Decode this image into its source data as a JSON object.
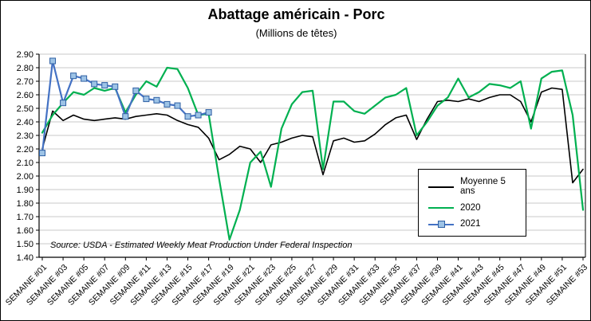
{
  "title": "Abattage américain - Porc",
  "subtitle": "(Millions de têtes)",
  "source_note": "Source: USDA - Estimated Weekly Meat Production Under Federal Inspection",
  "colors": {
    "moyenne_5_ans": "#000000",
    "s2020": "#00B050",
    "s2021": "#4472C4",
    "s2021_marker_fill": "#9DC3E6",
    "s2021_marker_stroke": "#2E5FA3",
    "grid": "#C9C9C9",
    "axis": "#000000"
  },
  "chart_data": {
    "type": "line",
    "title": "Abattage américain - Porc",
    "subtitle": "(Millions de têtes)",
    "ylabel": "",
    "xlabel": "",
    "ylim": [
      1.4,
      2.9
    ],
    "y_tick_step": 0.1,
    "grid": "horizontal",
    "legend_position": "inside-right",
    "weeks": 53,
    "y_tick_labels": [
      "2.90",
      "2.80",
      "2.70",
      "2.60",
      "2.50",
      "2.40",
      "2.30",
      "2.20",
      "2.10",
      "2.00",
      "1.90",
      "1.80",
      "1.70",
      "1.60",
      "1.50",
      "1.40"
    ],
    "x_tick_labels": [
      "SEMAINE #01",
      "SEMAINE #03",
      "SEMAINE #05",
      "SEMAINE #07",
      "SEMAINE #09",
      "SEMAINE #11",
      "SEMAINE #13",
      "SEMAINE #15",
      "SEMAINE #17",
      "SEMAINE #19",
      "SEMAINE #21",
      "SEMAINE #23",
      "SEMAINE #25",
      "SEMAINE #27",
      "SEMAINE #29",
      "SEMAINE #31",
      "SEMAINE #33",
      "SEMAINE #35",
      "SEMAINE #37",
      "SEMAINE #39",
      "SEMAINE #41",
      "SEMAINE #43",
      "SEMAINE #45",
      "SEMAINE #47",
      "SEMAINE #49",
      "SEMAINE #51",
      "SEMAINE #53"
    ],
    "series": [
      {
        "name": "Moyenne 5 ans",
        "color_key": "moyenne_5_ans",
        "marker": "none",
        "values": [
          2.2,
          2.48,
          2.41,
          2.45,
          2.42,
          2.41,
          2.42,
          2.43,
          2.42,
          2.44,
          2.45,
          2.46,
          2.45,
          2.41,
          2.38,
          2.36,
          2.28,
          2.12,
          2.16,
          2.22,
          2.2,
          2.1,
          2.23,
          2.25,
          2.28,
          2.3,
          2.29,
          2.01,
          2.26,
          2.28,
          2.25,
          2.26,
          2.31,
          2.38,
          2.43,
          2.45,
          2.27,
          2.42,
          2.55,
          2.56,
          2.55,
          2.57,
          2.55,
          2.58,
          2.6,
          2.6,
          2.55,
          2.4,
          2.62,
          2.65,
          2.64,
          1.95,
          2.05
        ]
      },
      {
        "name": "2020",
        "color_key": "s2020",
        "marker": "none",
        "values": [
          2.32,
          2.45,
          2.54,
          2.62,
          2.6,
          2.65,
          2.63,
          2.65,
          2.47,
          2.6,
          2.7,
          2.66,
          2.8,
          2.79,
          2.65,
          2.45,
          2.46,
          1.98,
          1.53,
          1.75,
          2.1,
          2.18,
          1.92,
          2.35,
          2.53,
          2.62,
          2.63,
          2.05,
          2.55,
          2.55,
          2.48,
          2.46,
          2.52,
          2.58,
          2.6,
          2.65,
          2.3,
          2.4,
          2.52,
          2.58,
          2.72,
          2.58,
          2.62,
          2.68,
          2.67,
          2.65,
          2.7,
          2.35,
          2.72,
          2.77,
          2.78,
          2.45,
          1.75
        ]
      },
      {
        "name": "2021",
        "color_key": "s2021",
        "marker": "square",
        "values": [
          2.17,
          2.85,
          2.54,
          2.74,
          2.72,
          2.68,
          2.67,
          2.66,
          2.44,
          2.63,
          2.57,
          2.56,
          2.53,
          2.52,
          2.44,
          2.45,
          2.47,
          null,
          null,
          null,
          null,
          null,
          null,
          null,
          null,
          null,
          null,
          null,
          null,
          null,
          null,
          null,
          null,
          null,
          null,
          null,
          null,
          null,
          null,
          null,
          null,
          null,
          null,
          null,
          null,
          null,
          null,
          null,
          null,
          null,
          null,
          null,
          null
        ]
      }
    ]
  }
}
